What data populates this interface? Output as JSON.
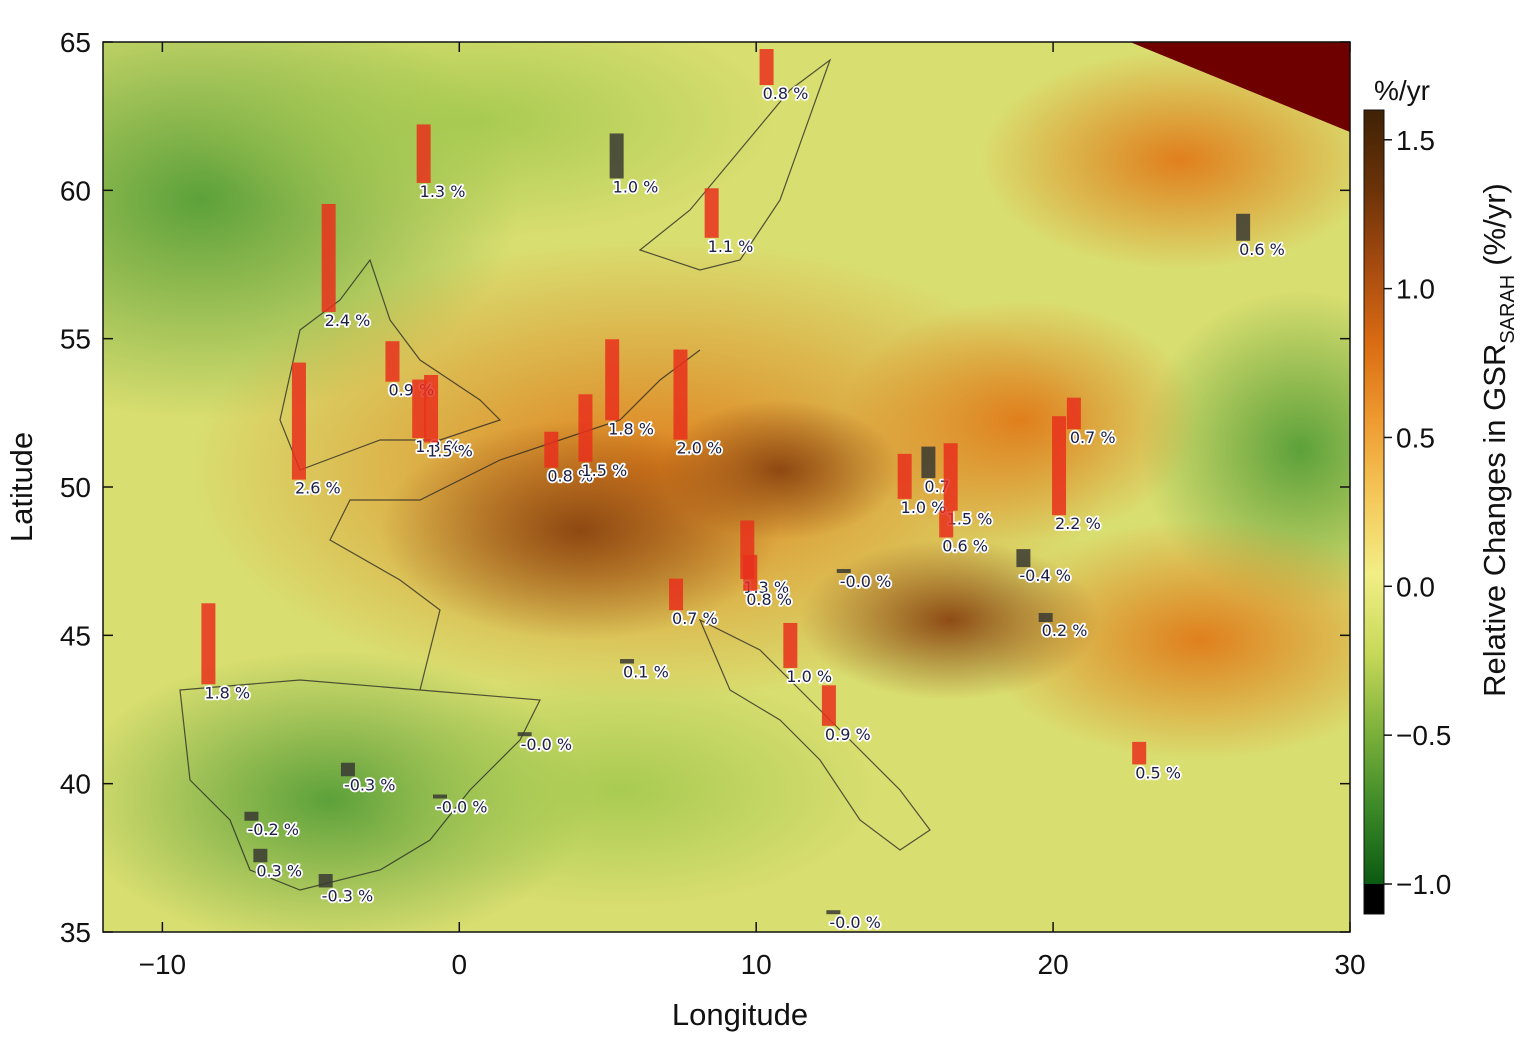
{
  "chart_data": {
    "type": "map",
    "x_label": "Longitude",
    "y_label": "Latitude",
    "xlim": [
      -12,
      30
    ],
    "ylim": [
      35,
      65
    ],
    "xticks": [
      {
        "value": -10,
        "label": "−10"
      },
      0,
      10,
      20,
      30
    ],
    "yticks": [
      35,
      40,
      45,
      50,
      55,
      60,
      65
    ],
    "colorbar_title": "%/yr",
    "colorbar_label": {
      "text": "Relative Changes in GSR",
      "subscript": "SARAH",
      "suffix": "(%/yr)"
    },
    "zlim": [
      -1.0,
      1.6
    ],
    "zticks": [
      {
        "value": 1.5,
        "label": "1.5"
      },
      {
        "value": 1,
        "label": "1.0"
      },
      {
        "value": 0.5,
        "label": "0.5"
      },
      {
        "value": 0,
        "label": "0.0"
      },
      {
        "value": -0.5,
        "label": "−0.5"
      },
      {
        "value": -1,
        "label": "−1.0"
      }
    ],
    "colorbar_colors": [
      "#0b5a12",
      "#3d8a28",
      "#7fb23c",
      "#c8d95a",
      "#f2ee86",
      "#f5c85a",
      "#ee9a30",
      "#d96b12",
      "#a54a10",
      "#6a3208",
      "#3f2206"
    ],
    "colorbar_under_color": "#000000",
    "stations": [
      {
        "lon": 10.35,
        "lat": 63.55,
        "value": 0.8,
        "label": "0.8 %",
        "color": "#e8301c"
      },
      {
        "lon": -1.2,
        "lat": 60.25,
        "value": 1.3,
        "label": "1.3 %",
        "color": "#e8301c"
      },
      {
        "lon": 5.3,
        "lat": 60.4,
        "value": 1.0,
        "label": "1.0 %",
        "color": "#3a3a32"
      },
      {
        "lon": 8.5,
        "lat": 58.4,
        "value": 1.1,
        "label": "1.1 %",
        "color": "#e8301c"
      },
      {
        "lon": 26.4,
        "lat": 58.3,
        "value": 0.6,
        "label": "0.6 %",
        "color": "#3a3a32"
      },
      {
        "lon": -4.4,
        "lat": 55.9,
        "value": 2.4,
        "label": "2.4 %",
        "color": "#e8301c"
      },
      {
        "lon": -2.25,
        "lat": 53.55,
        "value": 0.9,
        "label": "0.9 %",
        "color": "#e8301c"
      },
      {
        "lon": -1.35,
        "lat": 51.65,
        "value": 1.3,
        "label": "1.3 %",
        "color": "#e8301c"
      },
      {
        "lon": -0.95,
        "lat": 51.5,
        "value": 1.5,
        "label": "1.5 %",
        "color": "#e8301c"
      },
      {
        "lon": -5.4,
        "lat": 50.25,
        "value": 2.6,
        "label": "2.6 %",
        "color": "#e8301c"
      },
      {
        "lon": 3.1,
        "lat": 50.65,
        "value": 0.8,
        "label": "0.8 %",
        "color": "#e8301c"
      },
      {
        "lon": 4.25,
        "lat": 50.85,
        "value": 1.5,
        "label": "1.5 %",
        "color": "#e8301c"
      },
      {
        "lon": 5.15,
        "lat": 52.25,
        "value": 1.8,
        "label": "1.8 %",
        "color": "#e8301c"
      },
      {
        "lon": 7.45,
        "lat": 51.6,
        "value": 2.0,
        "label": "2.0 %",
        "color": "#e8301c"
      },
      {
        "lon": 9.7,
        "lat": 46.9,
        "value": 1.3,
        "label": "1.3 %",
        "color": "#e8301c"
      },
      {
        "lon": 9.8,
        "lat": 46.5,
        "value": 0.8,
        "label": "0.8 %",
        "color": "#e8301c"
      },
      {
        "lon": 7.3,
        "lat": 45.85,
        "value": 0.7,
        "label": "0.7 %",
        "color": "#e8301c"
      },
      {
        "lon": 5.65,
        "lat": 44.05,
        "value": 0.1,
        "label": "0.1 %",
        "color": "#3a3a32"
      },
      {
        "lon": 11.15,
        "lat": 43.9,
        "value": 1.0,
        "label": "1.0 %",
        "color": "#e8301c"
      },
      {
        "lon": 12.45,
        "lat": 41.95,
        "value": 0.9,
        "label": "0.9 %",
        "color": "#e8301c"
      },
      {
        "lon": -8.45,
        "lat": 43.35,
        "value": 1.8,
        "label": "1.8 %",
        "color": "#e8301c"
      },
      {
        "lon": 2.2,
        "lat": 41.6,
        "value": 0,
        "label": "-0.0 %",
        "color": "#3a3a32"
      },
      {
        "lon": -3.75,
        "lat": 40.25,
        "value": -0.3,
        "label": "-0.3 %",
        "color": "#3a3a32"
      },
      {
        "lon": -0.65,
        "lat": 39.5,
        "value": 0,
        "label": "-0.0 %",
        "color": "#3a3a32"
      },
      {
        "lon": -7.0,
        "lat": 38.75,
        "value": -0.2,
        "label": "-0.2 %",
        "color": "#3a3a32"
      },
      {
        "lon": -6.7,
        "lat": 37.35,
        "value": 0.3,
        "label": "0.3 %",
        "color": "#3a3a32"
      },
      {
        "lon": -4.5,
        "lat": 36.5,
        "value": -0.3,
        "label": "-0.3 %",
        "color": "#3a3a32"
      },
      {
        "lon": 12.6,
        "lat": 35.6,
        "value": 0,
        "label": "-0.0 %",
        "color": "#3a3a32"
      },
      {
        "lon": 15.0,
        "lat": 49.6,
        "value": 1.0,
        "label": "1.0 %",
        "color": "#e8301c"
      },
      {
        "lon": 15.8,
        "lat": 50.3,
        "value": 0.7,
        "label": "0.7",
        "color": "#3a3a32"
      },
      {
        "lon": 16.55,
        "lat": 49.2,
        "value": 1.5,
        "label": "1.5 %",
        "color": "#e8301c"
      },
      {
        "lon": 16.4,
        "lat": 48.3,
        "value": 0.6,
        "label": "0.6 %",
        "color": "#e8301c"
      },
      {
        "lon": 20.2,
        "lat": 49.05,
        "value": 2.2,
        "label": "2.2 %",
        "color": "#e8301c"
      },
      {
        "lon": 20.7,
        "lat": 51.95,
        "value": 0.7,
        "label": "0.7 %",
        "color": "#e8301c"
      },
      {
        "lon": 19.0,
        "lat": 47.3,
        "value": -0.4,
        "label": "-0.4 %",
        "color": "#3a3a32"
      },
      {
        "lon": 19.75,
        "lat": 45.45,
        "value": 0.2,
        "label": "0.2 %",
        "color": "#3a3a32"
      },
      {
        "lon": 22.9,
        "lat": 40.65,
        "value": 0.5,
        "label": "0.5 %",
        "color": "#e8301c"
      },
      {
        "lon": 12.95,
        "lat": 47.1,
        "value": 0,
        "label": "-0.0 %",
        "color": "#3a3a32"
      }
    ]
  }
}
